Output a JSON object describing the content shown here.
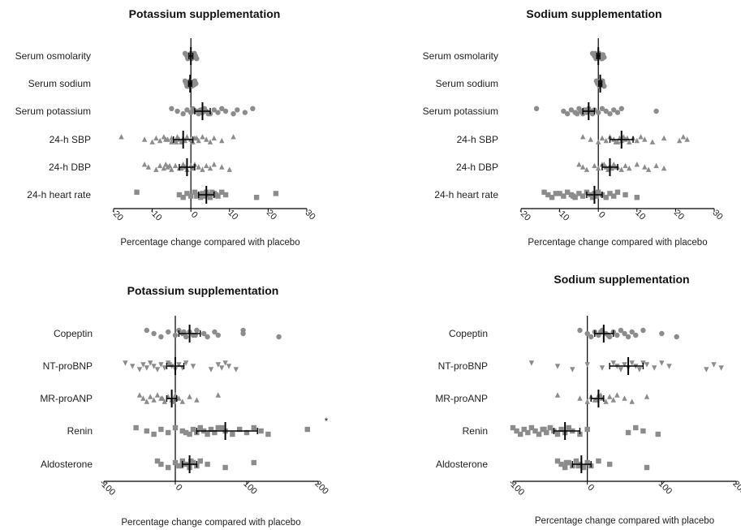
{
  "chart_data": [
    {
      "type": "scatter",
      "title": "Potassium supplementation",
      "xlabel": "Percentage change compared with placebo",
      "xlim": [
        -20,
        30
      ],
      "xticks": [
        -20,
        -10,
        0,
        10,
        20,
        30
      ],
      "tick_labels": [
        "-20",
        "-10",
        "0",
        "10",
        "20",
        "30"
      ],
      "note": "",
      "colors": {
        "points": "#8c8c8c",
        "summary": "#000000"
      },
      "rows": [
        {
          "label": "Serum osmolarity",
          "marker": "circle",
          "mean": 0,
          "ci": [
            -0.5,
            0.5
          ],
          "values": [
            -1.5,
            -1,
            -0.8,
            -0.5,
            -0.3,
            0,
            0,
            0.2,
            0.4,
            0.6,
            0.9,
            1.2,
            1.5,
            -1.2,
            0.8
          ]
        },
        {
          "label": "Serum sodium",
          "marker": "circle",
          "mean": -0.2,
          "ci": [
            -0.6,
            0.2
          ],
          "values": [
            -1.5,
            -1.2,
            -1,
            -0.6,
            -0.4,
            -0.2,
            0,
            0.2,
            0.5,
            0.8,
            1,
            1.3,
            -0.8,
            0.6
          ]
        },
        {
          "label": "Serum potassium",
          "marker": "circle",
          "mean": 3,
          "ci": [
            1,
            5
          ],
          "values": [
            -5,
            -3.5,
            -2,
            -1,
            0,
            0.5,
            1,
            2,
            2.5,
            3,
            3.5,
            4,
            5,
            6,
            7,
            8,
            9,
            11,
            12,
            14,
            16,
            1.5,
            4.5
          ]
        },
        {
          "label": "24-h SBP",
          "marker": "triangle",
          "mean": -2,
          "ci": [
            -4.5,
            0.5
          ],
          "values": [
            -18,
            -12,
            -10,
            -9,
            -8,
            -7,
            -6,
            -5,
            -5,
            -4,
            -3.5,
            -3,
            -2.5,
            -2,
            -1.5,
            -1,
            0,
            0.5,
            1,
            2,
            3,
            4,
            5,
            6,
            8,
            11,
            -6.5,
            -3.8,
            1.5
          ]
        },
        {
          "label": "24-h DBP",
          "marker": "triangle",
          "mean": -1,
          "ci": [
            -3,
            1
          ],
          "values": [
            -12,
            -11,
            -9,
            -8,
            -7,
            -6.5,
            -6,
            -5,
            -4,
            -3,
            -2,
            -1.5,
            -1,
            0,
            0.5,
            1,
            2,
            3,
            4,
            5,
            6,
            8,
            10,
            -5.5,
            -2.5
          ]
        },
        {
          "label": "24-h heart rate",
          "marker": "square",
          "mean": 4,
          "ci": [
            2,
            6
          ],
          "values": [
            -14,
            -3,
            -2,
            -1,
            0,
            1,
            2,
            2.5,
            3,
            3.5,
            4,
            4.5,
            5,
            6,
            7,
            8,
            9,
            17,
            22,
            1.5,
            5.5,
            6.5
          ]
        }
      ]
    },
    {
      "type": "scatter",
      "title": "Sodium supplementation",
      "xlabel": "Percentage change compared with placebo",
      "xlim": [
        -20,
        30
      ],
      "xticks": [
        -20,
        -10,
        0,
        10,
        20,
        30
      ],
      "tick_labels": [
        "-20",
        "-10",
        "0",
        "10",
        "20",
        "30"
      ],
      "note": "",
      "colors": {
        "points": "#8c8c8c",
        "summary": "#000000"
      },
      "rows": [
        {
          "label": "Serum osmolarity",
          "marker": "circle",
          "mean": 0,
          "ci": [
            -0.4,
            0.4
          ],
          "values": [
            -1.5,
            -1,
            -0.6,
            -0.3,
            0,
            0.2,
            0.5,
            0.8,
            1.2,
            1.5,
            -0.8,
            0.6,
            1
          ]
        },
        {
          "label": "Serum sodium",
          "marker": "circle",
          "mean": 0.5,
          "ci": [
            0.1,
            0.9
          ],
          "values": [
            -0.5,
            0,
            0.3,
            0.5,
            0.8,
            1,
            1.2,
            1.5,
            0.2,
            0.7,
            1.1,
            -0.2
          ]
        },
        {
          "label": "Serum potassium",
          "marker": "circle",
          "mean": -2.5,
          "ci": [
            -4,
            -1
          ],
          "values": [
            -16,
            -9,
            -8,
            -7,
            -6,
            -5,
            -4.5,
            -4,
            -3.5,
            -3,
            -2.5,
            -2,
            -1.5,
            -1,
            0,
            1,
            2,
            3,
            4,
            5,
            6,
            15,
            -5.5,
            -2.8
          ]
        },
        {
          "label": "24-h SBP",
          "marker": "triangle",
          "mean": 6,
          "ci": [
            3,
            9
          ],
          "values": [
            -4,
            -2,
            0,
            1,
            2,
            3,
            4,
            5,
            5.5,
            6,
            6.5,
            7,
            8,
            9,
            10,
            11,
            12,
            14,
            17,
            21,
            22,
            23,
            4.5,
            7.5
          ]
        },
        {
          "label": "24-h DBP",
          "marker": "triangle",
          "mean": 3,
          "ci": [
            1,
            5
          ],
          "values": [
            -5,
            -4,
            -3,
            -1,
            0,
            1,
            2,
            2.5,
            3,
            3.5,
            4,
            5,
            6,
            7,
            8,
            10,
            12,
            13,
            15,
            17,
            1.5,
            4.5
          ]
        },
        {
          "label": "24-h heart rate",
          "marker": "square",
          "mean": -1,
          "ci": [
            -3,
            1
          ],
          "values": [
            -14,
            -13,
            -12,
            -10,
            -9,
            -8,
            -7,
            -6,
            -5,
            -4,
            -3,
            -2,
            -1.5,
            -1,
            -0.5,
            0,
            1,
            2,
            3,
            4,
            5,
            7,
            10,
            -11,
            -6.5
          ]
        }
      ]
    },
    {
      "type": "scatter",
      "title": "Potassium supplementation",
      "xlabel": "Percentage change compared with placebo",
      "xlim": [
        -100,
        200
      ],
      "xticks": [
        -100,
        0,
        100,
        200
      ],
      "tick_labels": [
        "-100",
        "0",
        "100",
        "200"
      ],
      "note": "*",
      "colors": {
        "points": "#8c8c8c",
        "summary": "#000000"
      },
      "rows": [
        {
          "label": "Copeptin",
          "marker": "circle",
          "mean": 20,
          "ci": [
            5,
            35
          ],
          "values": [
            -40,
            -30,
            -20,
            -10,
            0,
            5,
            10,
            15,
            20,
            25,
            30,
            40,
            45,
            55,
            60,
            95,
            95,
            145,
            12,
            28
          ]
        },
        {
          "label": "NT-proBNP",
          "marker": "triangle-down",
          "mean": 0,
          "ci": [
            -12,
            12
          ],
          "values": [
            -70,
            -60,
            -50,
            -45,
            -40,
            -35,
            -30,
            -25,
            -20,
            -15,
            -10,
            -5,
            0,
            5,
            10,
            15,
            25,
            50,
            60,
            65,
            70,
            75,
            85,
            -8
          ]
        },
        {
          "label": "MR-proANP",
          "marker": "triangle",
          "mean": -5,
          "ci": [
            -12,
            2
          ],
          "values": [
            -50,
            -45,
            -40,
            -35,
            -30,
            -25,
            -20,
            -15,
            -10,
            -5,
            0,
            5,
            10,
            20,
            30,
            60,
            -18,
            -2
          ]
        },
        {
          "label": "Renin",
          "marker": "square",
          "mean": 70,
          "ci": [
            30,
            115
          ],
          "values": [
            -55,
            -40,
            -30,
            -20,
            -10,
            0,
            10,
            20,
            25,
            30,
            35,
            40,
            45,
            50,
            55,
            60,
            70,
            80,
            90,
            100,
            110,
            120,
            130,
            185,
            15,
            65
          ]
        },
        {
          "label": "Aldosterone",
          "marker": "square",
          "mean": 20,
          "ci": [
            10,
            30
          ],
          "values": [
            -25,
            -20,
            -10,
            0,
            5,
            10,
            15,
            20,
            25,
            30,
            35,
            45,
            70,
            110,
            8,
            22
          ]
        }
      ]
    },
    {
      "type": "scatter",
      "title": "Sodium supplementation",
      "xlabel": "Percentage change compared with placebo",
      "xlim": [
        -100,
        200
      ],
      "xticks": [
        -100,
        0,
        100,
        200
      ],
      "tick_labels": [
        "-100",
        "0",
        "100",
        "200"
      ],
      "note": "",
      "colors": {
        "points": "#8c8c8c",
        "summary": "#000000"
      },
      "rows": [
        {
          "label": "Copeptin",
          "marker": "circle",
          "mean": 22,
          "ci": [
            10,
            35
          ],
          "values": [
            -10,
            0,
            5,
            10,
            15,
            20,
            25,
            30,
            35,
            40,
            45,
            50,
            55,
            60,
            65,
            75,
            100,
            120,
            18,
            28
          ]
        },
        {
          "label": "NT-proBNP",
          "marker": "triangle-down",
          "mean": 55,
          "ci": [
            30,
            75
          ],
          "values": [
            -75,
            -40,
            -20,
            0,
            20,
            35,
            40,
            45,
            50,
            55,
            60,
            65,
            70,
            80,
            90,
            100,
            110,
            160,
            170,
            180,
            75
          ]
        },
        {
          "label": "MR-proANP",
          "marker": "triangle",
          "mean": 15,
          "ci": [
            5,
            22
          ],
          "values": [
            -40,
            -10,
            0,
            5,
            10,
            15,
            20,
            25,
            30,
            35,
            40,
            50,
            60,
            80,
            12,
            18
          ]
        },
        {
          "label": "Renin",
          "marker": "square",
          "mean": -30,
          "ci": [
            -45,
            -10
          ],
          "values": [
            -100,
            -95,
            -90,
            -85,
            -80,
            -75,
            -70,
            -65,
            -60,
            -55,
            -50,
            -45,
            -40,
            -35,
            -30,
            -25,
            -20,
            -10,
            0,
            55,
            65,
            75,
            95,
            -58
          ]
        },
        {
          "label": "Aldosterone",
          "marker": "square",
          "mean": -8,
          "ci": [
            -20,
            5
          ],
          "values": [
            -40,
            -35,
            -30,
            -25,
            -20,
            -15,
            -10,
            -5,
            0,
            5,
            15,
            30,
            80,
            -28,
            -12
          ]
        }
      ]
    }
  ]
}
